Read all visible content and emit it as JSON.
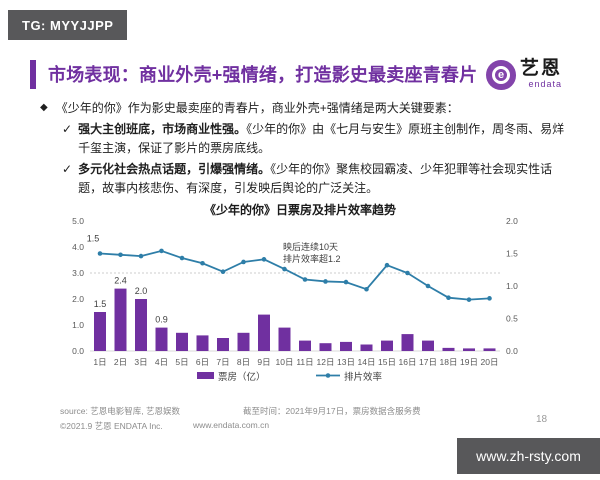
{
  "watermarks": {
    "top_left": "TG: MYYJJPP",
    "bottom_right": "www.zh-rsty.com"
  },
  "header": {
    "title": "市场表现：商业外壳+强情绪，打造影史最卖座青春片",
    "logo": {
      "symbol": "e",
      "name": "艺恩",
      "subname": "endata"
    }
  },
  "bullets": {
    "lead": "《少年的你》作为影史最卖座的青春片，商业外壳+强情绪是两大关键要素：",
    "check_glyph": "✓",
    "diamond_glyph": "◆",
    "items": [
      {
        "bold": "强大主创班底，市场商业性强。",
        "rest": "《少年的你》由《七月与安生》原班主创制作，周冬雨、易烊千玺主演，保证了影片的票房底线。"
      },
      {
        "bold": "多元化社会热点话题，引爆强情绪。",
        "rest": "《少年的你》聚焦校园霸凌、少年犯罪等社会现实性话题，故事内核悲伤、有深度，引发映后舆论的广泛关注。"
      }
    ]
  },
  "chart_data": {
    "type": "bar",
    "title": "《少年的你》日票房及排片效率趋势",
    "categories": [
      "1日",
      "2日",
      "3日",
      "4日",
      "5日",
      "6日",
      "7日",
      "8日",
      "9日",
      "10日",
      "11日",
      "12日",
      "13日",
      "14日",
      "15日",
      "16日",
      "17日",
      "18日",
      "19日",
      "20日"
    ],
    "series": [
      {
        "name": "票房（亿）",
        "type": "bar",
        "axis": "left",
        "color": "#7030a0",
        "values": [
          1.5,
          2.4,
          2.0,
          0.9,
          0.7,
          0.6,
          0.5,
          0.7,
          1.4,
          0.9,
          0.4,
          0.3,
          0.35,
          0.25,
          0.4,
          0.65,
          0.4,
          0.12,
          0.1,
          0.1
        ]
      },
      {
        "name": "排片效率",
        "type": "line",
        "axis": "right",
        "color": "#2e7ea8",
        "values": [
          1.5,
          1.48,
          1.46,
          1.54,
          1.43,
          1.35,
          1.22,
          1.37,
          1.41,
          1.26,
          1.1,
          1.07,
          1.06,
          0.95,
          1.32,
          1.2,
          1.0,
          0.82,
          0.79,
          0.81
        ]
      }
    ],
    "left_axis": {
      "min": 0,
      "max": 5,
      "ticks": [
        "0.0",
        "1.0",
        "2.0",
        "3.0",
        "4.0",
        "5.0"
      ]
    },
    "right_axis": {
      "min": 0,
      "max": 2,
      "ticks": [
        "0.0",
        "0.5",
        "1.0",
        "1.5",
        "2.0"
      ]
    },
    "bar_labels": [
      {
        "index": 0,
        "text": "1.5"
      },
      {
        "index": 1,
        "text": "2.4"
      },
      {
        "index": 2,
        "text": "2.0"
      },
      {
        "index": 3,
        "text": "0.9"
      }
    ],
    "line_label": {
      "index": 0,
      "text": "1.5"
    },
    "annotation": [
      "映后连续10天",
      "排片效率超1.2"
    ],
    "reference_line_right_value": 1.2,
    "legend": [
      "票房（亿）",
      "排片效率"
    ],
    "grid": "single dotted reference line at right-axis 1.2",
    "legend_position": "bottom"
  },
  "footer": {
    "source_line1a": "source: 艺恩电影智库, 艺恩娱数",
    "source_line1b": "截至时间：2021年9月17日，票房数据含服务费",
    "source_line2a": "©2021.9 艺恩 ENDATA Inc.",
    "source_line2b": "www.endata.com.cn",
    "page_number": "18"
  },
  "colors": {
    "accent_purple": "#7030a0",
    "line_teal": "#2e7ea8",
    "badge_gray": "#58585a",
    "text_dark": "#1f1f1f",
    "text_gray": "#8c8c8c",
    "axis_gray": "#595959"
  }
}
